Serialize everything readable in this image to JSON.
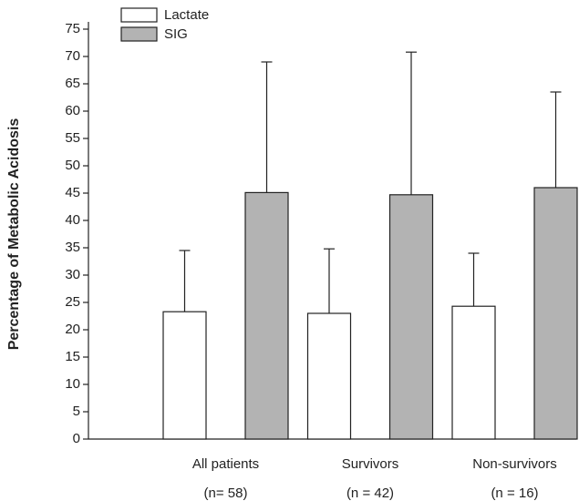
{
  "chart_data": {
    "type": "bar",
    "ylabel": "Percentage of Metabolic Acidosis",
    "categories": [
      [
        "All patients",
        "(n= 58)"
      ],
      [
        "Survivors",
        "(n = 42)"
      ],
      [
        "Non-survivors",
        "(n = 16)"
      ]
    ],
    "series": [
      {
        "name": "Lactate",
        "color": "#ffffff",
        "values": [
          23.3,
          23.0,
          24.3
        ],
        "errors": [
          11.2,
          11.8,
          9.7
        ]
      },
      {
        "name": "SIG",
        "color": "#b3b3b3",
        "values": [
          45.1,
          44.7,
          46.0
        ],
        "errors": [
          23.9,
          26.1,
          17.5
        ]
      }
    ],
    "ylim": [
      0,
      75
    ],
    "yticks": [
      0,
      5,
      10,
      15,
      20,
      25,
      30,
      35,
      40,
      45,
      50,
      55,
      60,
      65,
      70,
      75
    ],
    "legend": "top-left"
  }
}
